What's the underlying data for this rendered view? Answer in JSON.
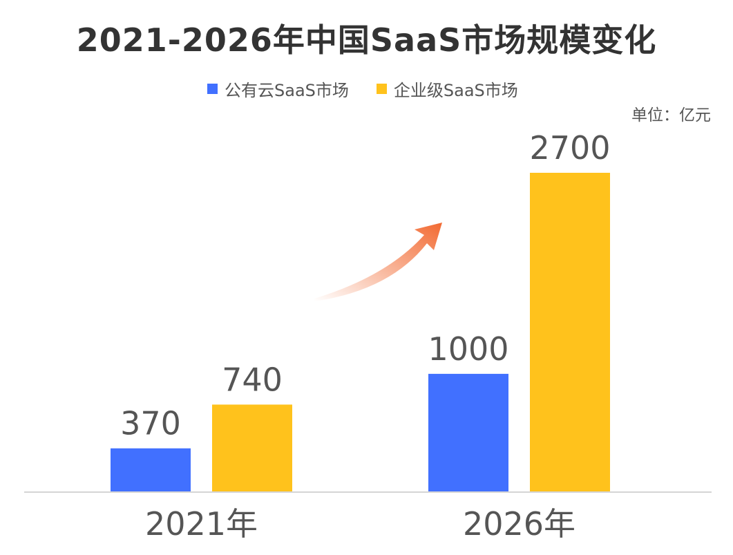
{
  "title": "2021-2026年中国SaaS市场规模变化",
  "unit_label": "单位：亿元",
  "colors": {
    "series_public": "#4170FF",
    "series_enterprise": "#FFC21C",
    "arrow": "#F26A32",
    "axis": "#D5D5D5",
    "label": "#555555"
  },
  "chart_data": {
    "type": "bar",
    "title": "2021-2026年中国SaaS市场规模变化",
    "categories": [
      "2021年",
      "2026年"
    ],
    "series": [
      {
        "name": "公有云SaaS市场",
        "values": [
          370,
          1000
        ],
        "color": "#4170FF"
      },
      {
        "name": "企业级SaaS市场",
        "values": [
          740,
          2700
        ],
        "color": "#FFC21C"
      }
    ],
    "ylim": [
      0,
      2700
    ],
    "grid": false,
    "legend": "top",
    "data_labels": true,
    "unit": "亿元",
    "annotation": "growth-arrow"
  }
}
